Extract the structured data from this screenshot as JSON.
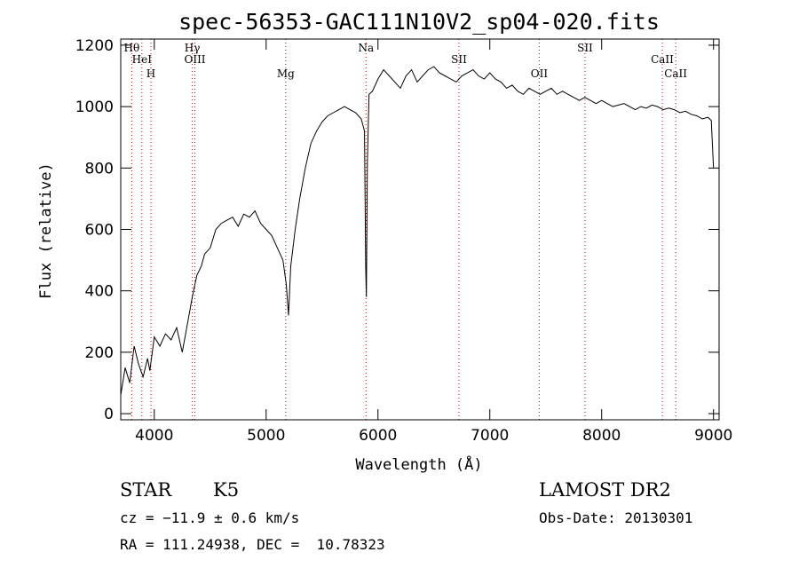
{
  "chart_data": {
    "type": "line",
    "title": "spec-56353-GAC111N10V2_sp04-020.fits",
    "xlabel": "Wavelength (Å)",
    "ylabel": "Flux (relative)",
    "xlim": [
      3700,
      9050
    ],
    "ylim": [
      -20,
      1220
    ],
    "xticks": [
      4000,
      5000,
      6000,
      7000,
      8000,
      9000
    ],
    "yticks": [
      0,
      200,
      400,
      600,
      800,
      1000,
      1200
    ],
    "series": [
      {
        "x": [
          3700,
          3740,
          3780,
          3820,
          3860,
          3900,
          3940,
          3960,
          4000,
          4050,
          4100,
          4150,
          4200,
          4250,
          4300,
          4340,
          4380,
          4420,
          4450,
          4500,
          4550,
          4600,
          4650,
          4700,
          4750,
          4800,
          4850,
          4900,
          4950,
          5000,
          5050,
          5100,
          5150,
          5180,
          5200,
          5220,
          5260,
          5300,
          5350,
          5400,
          5450,
          5500,
          5550,
          5600,
          5650,
          5700,
          5750,
          5800,
          5850,
          5880,
          5890,
          5896,
          5905,
          5920,
          5950,
          6000,
          6050,
          6100,
          6150,
          6200,
          6250,
          6300,
          6350,
          6400,
          6450,
          6500,
          6550,
          6600,
          6650,
          6700,
          6750,
          6800,
          6850,
          6900,
          6950,
          7000,
          7050,
          7100,
          7150,
          7200,
          7250,
          7300,
          7350,
          7400,
          7450,
          7500,
          7550,
          7600,
          7650,
          7700,
          7750,
          7800,
          7850,
          7900,
          7950,
          8000,
          8050,
          8100,
          8150,
          8200,
          8250,
          8300,
          8350,
          8400,
          8450,
          8500,
          8550,
          8600,
          8650,
          8700,
          8750,
          8800,
          8850,
          8900,
          8950,
          8980,
          9000
        ],
        "y": [
          60,
          150,
          100,
          220,
          160,
          120,
          180,
          140,
          250,
          220,
          260,
          240,
          280,
          200,
          300,
          380,
          450,
          480,
          520,
          540,
          600,
          620,
          630,
          640,
          610,
          650,
          640,
          660,
          620,
          600,
          580,
          540,
          500,
          420,
          320,
          480,
          600,
          700,
          800,
          880,
          920,
          950,
          970,
          980,
          990,
          1000,
          990,
          980,
          960,
          920,
          480,
          380,
          820,
          1040,
          1050,
          1090,
          1120,
          1100,
          1080,
          1060,
          1100,
          1120,
          1080,
          1100,
          1120,
          1130,
          1110,
          1100,
          1090,
          1080,
          1100,
          1110,
          1120,
          1100,
          1090,
          1110,
          1090,
          1080,
          1060,
          1070,
          1050,
          1040,
          1060,
          1050,
          1040,
          1050,
          1060,
          1040,
          1050,
          1040,
          1030,
          1020,
          1030,
          1020,
          1010,
          1020,
          1010,
          1000,
          1005,
          1010,
          1000,
          990,
          1000,
          995,
          1005,
          1000,
          990,
          995,
          990,
          980,
          985,
          975,
          970,
          960,
          965,
          955,
          800
        ]
      }
    ],
    "lines": [
      {
        "wl": 3798,
        "label": "Hθ"
      },
      {
        "wl": 3889,
        "label": "HeI"
      },
      {
        "wl": 3970,
        "label": "H"
      },
      {
        "wl": 4340,
        "label": "Hγ"
      },
      {
        "wl": 4363,
        "label": "OIII"
      },
      {
        "wl": 5175,
        "label": "Mg"
      },
      {
        "wl": 5893,
        "label": "Na"
      },
      {
        "wl": 6724,
        "label": "SII"
      },
      {
        "wl": 7442,
        "label": "OII"
      },
      {
        "wl": 7851,
        "label": "SII"
      },
      {
        "wl": 8542,
        "label": "CaII"
      },
      {
        "wl": 8662,
        "label": "CaII"
      }
    ]
  },
  "info": {
    "class_label": "STAR",
    "subclass": "K5",
    "cz": "cz = −11.9 ± 0.6 km/s",
    "coords": "RA = 111.24938, DEC =  10.78323",
    "survey": "LAMOST DR2",
    "obs_date": "Obs-Date: 20130301"
  }
}
